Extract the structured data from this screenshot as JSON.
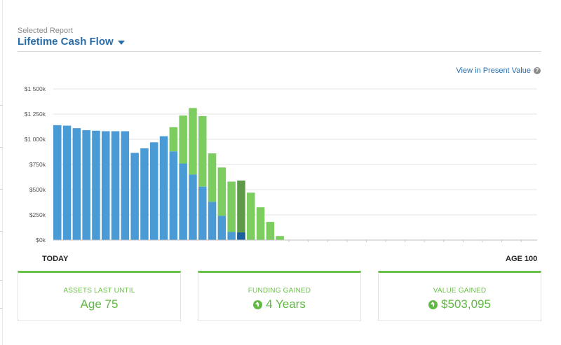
{
  "header": {
    "selected_label": "Selected Report",
    "report_title": "Lifetime Cash Flow"
  },
  "present_value_link": "View in Present Value",
  "axis": {
    "start_label": "TODAY",
    "end_label": "AGE 100"
  },
  "cards": [
    {
      "title": "ASSETS LAST UNTIL",
      "value": "Age 75",
      "icon": ""
    },
    {
      "title": "FUNDING GAINED",
      "value": "4 Years",
      "icon": "arrow-up-circle-icon"
    },
    {
      "title": "VALUE GAINED",
      "value": "$503,095",
      "icon": "arrow-up-circle-icon"
    }
  ],
  "colors": {
    "blue": "#4a9ad6",
    "green": "#7ccc5f",
    "dark_green": "#5e9a48",
    "dark_blue": "#1c5fa0",
    "accent": "#2a6da8"
  },
  "chart_data": {
    "type": "bar",
    "ylim": [
      0,
      1500
    ],
    "yticks": [
      "$0k",
      "$250k",
      "$500k",
      "$750k",
      "$1 000k",
      "$1 250k",
      "$1 500k"
    ],
    "ytick_values": [
      0,
      250,
      500,
      750,
      1000,
      1250,
      1500
    ],
    "total_slots": 25,
    "series": [
      {
        "name": "",
        "values": [
          1140,
          1135,
          1110,
          1090,
          1085,
          1080,
          1080,
          1080,
          865,
          910,
          970,
          1030,
          880,
          760,
          650,
          530,
          380,
          240,
          80,
          0,
          0,
          0,
          0,
          0,
          0
        ]
      },
      {
        "name": "",
        "values": [
          0,
          0,
          0,
          0,
          0,
          0,
          0,
          0,
          0,
          0,
          0,
          0,
          240,
          475,
          660,
          700,
          480,
          480,
          500,
          590,
          470,
          325,
          180,
          40,
          0
        ]
      }
    ],
    "highlight_index": 19
  }
}
